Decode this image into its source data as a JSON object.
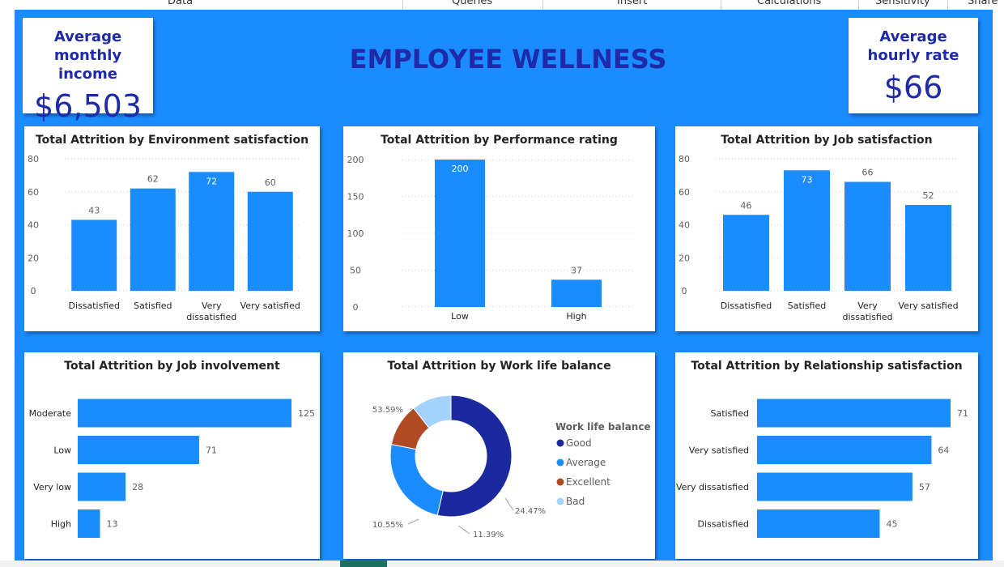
{
  "ribbon": {
    "tabs": [
      "Data",
      "Queries",
      "Insert",
      "Calculations",
      "Sensitivity",
      "Share"
    ]
  },
  "dashboard": {
    "title": "EMPLOYEE WELLNESS",
    "kpi_income": {
      "label": "Average monthly income",
      "value": "$6,503"
    },
    "kpi_rate": {
      "label": "Average hourly rate",
      "value": "$66"
    }
  },
  "colors": {
    "background": "#1a8cff",
    "bar": "#1a8cff",
    "title_text": "#1f2aa8"
  },
  "chart_data": [
    {
      "type": "bar",
      "title": "Total Attrition by Environment satisfaction",
      "categories": [
        "Dissatisfied",
        "Satisfied",
        "Very dissatisfied",
        "Very satisfied"
      ],
      "values": [
        43,
        62,
        72,
        60
      ],
      "ylim": [
        0,
        80
      ],
      "yticks": [
        0,
        20,
        40,
        60,
        80
      ],
      "grid": true
    },
    {
      "type": "bar",
      "title": "Total Attrition by Performance rating",
      "categories": [
        "Low",
        "High"
      ],
      "values": [
        200,
        37
      ],
      "ylim": [
        0,
        200
      ],
      "yticks": [
        0,
        50,
        100,
        150,
        200
      ],
      "grid": true
    },
    {
      "type": "bar",
      "title": "Total Attrition by Job satisfaction",
      "categories": [
        "Dissatisfied",
        "Satisfied",
        "Very dissatisfied",
        "Very satisfied"
      ],
      "values": [
        46,
        73,
        66,
        52
      ],
      "ylim": [
        0,
        80
      ],
      "yticks": [
        0,
        20,
        40,
        60,
        80
      ],
      "grid": true
    },
    {
      "type": "bar",
      "orientation": "horizontal",
      "title": "Total Attrition by Job involvement",
      "categories": [
        "Moderate",
        "Low",
        "Very low",
        "High"
      ],
      "values": [
        125,
        71,
        28,
        13
      ]
    },
    {
      "type": "pie",
      "variant": "donut",
      "title": "Total Attrition by Work life balance",
      "legend_title": "Work life balance",
      "legend_position": "right",
      "slices": [
        {
          "label": "Good",
          "value": 53.59,
          "display": "53.59%",
          "color": "#1a2a9e"
        },
        {
          "label": "Average",
          "value": 24.47,
          "display": "24.47%",
          "color": "#1a8cff"
        },
        {
          "label": "Excellent",
          "value": 11.39,
          "display": "11.39%",
          "color": "#b04a22"
        },
        {
          "label": "Bad",
          "value": 10.55,
          "display": "10.55%",
          "color": "#a3d2ff"
        }
      ]
    },
    {
      "type": "bar",
      "orientation": "horizontal",
      "title": "Total Attrition by Relationship satisfaction",
      "categories": [
        "Satisfied",
        "Very satisfied",
        "Very dissatisfied",
        "Dissatisfied"
      ],
      "values": [
        71,
        64,
        57,
        45
      ]
    }
  ]
}
